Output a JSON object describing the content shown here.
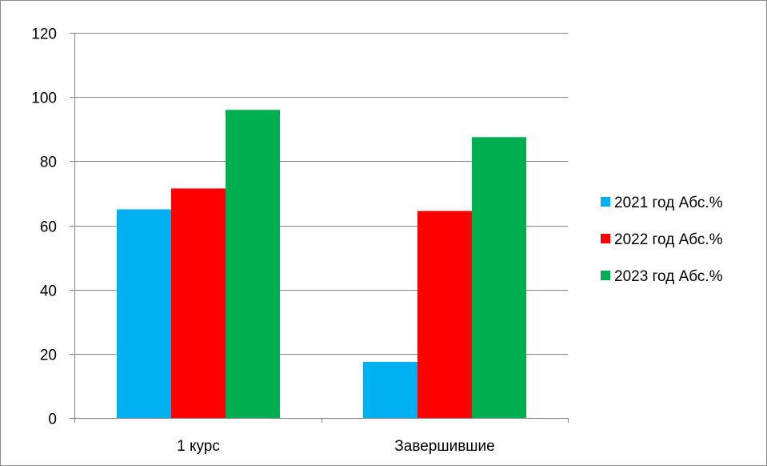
{
  "chart_data": {
    "type": "bar",
    "title": "",
    "xlabel": "",
    "ylabel": "",
    "categories": [
      "1 курс",
      "Завершившие"
    ],
    "series": [
      {
        "name": "2021 год Абс.%",
        "values": [
          65,
          17.5
        ],
        "color": "#00b0f0"
      },
      {
        "name": "2022 год Абс.%",
        "values": [
          71.5,
          64.5
        ],
        "color": "#ff0000"
      },
      {
        "name": "2023 год Абс.%",
        "values": [
          96,
          87.5
        ],
        "color": "#00b050"
      }
    ],
    "ylim": [
      0,
      120
    ],
    "yticks": [
      0,
      20,
      40,
      60,
      80,
      100,
      120
    ],
    "grid": true,
    "legend_position": "right",
    "axis_color": "#868686",
    "grid_color": "#868686"
  }
}
